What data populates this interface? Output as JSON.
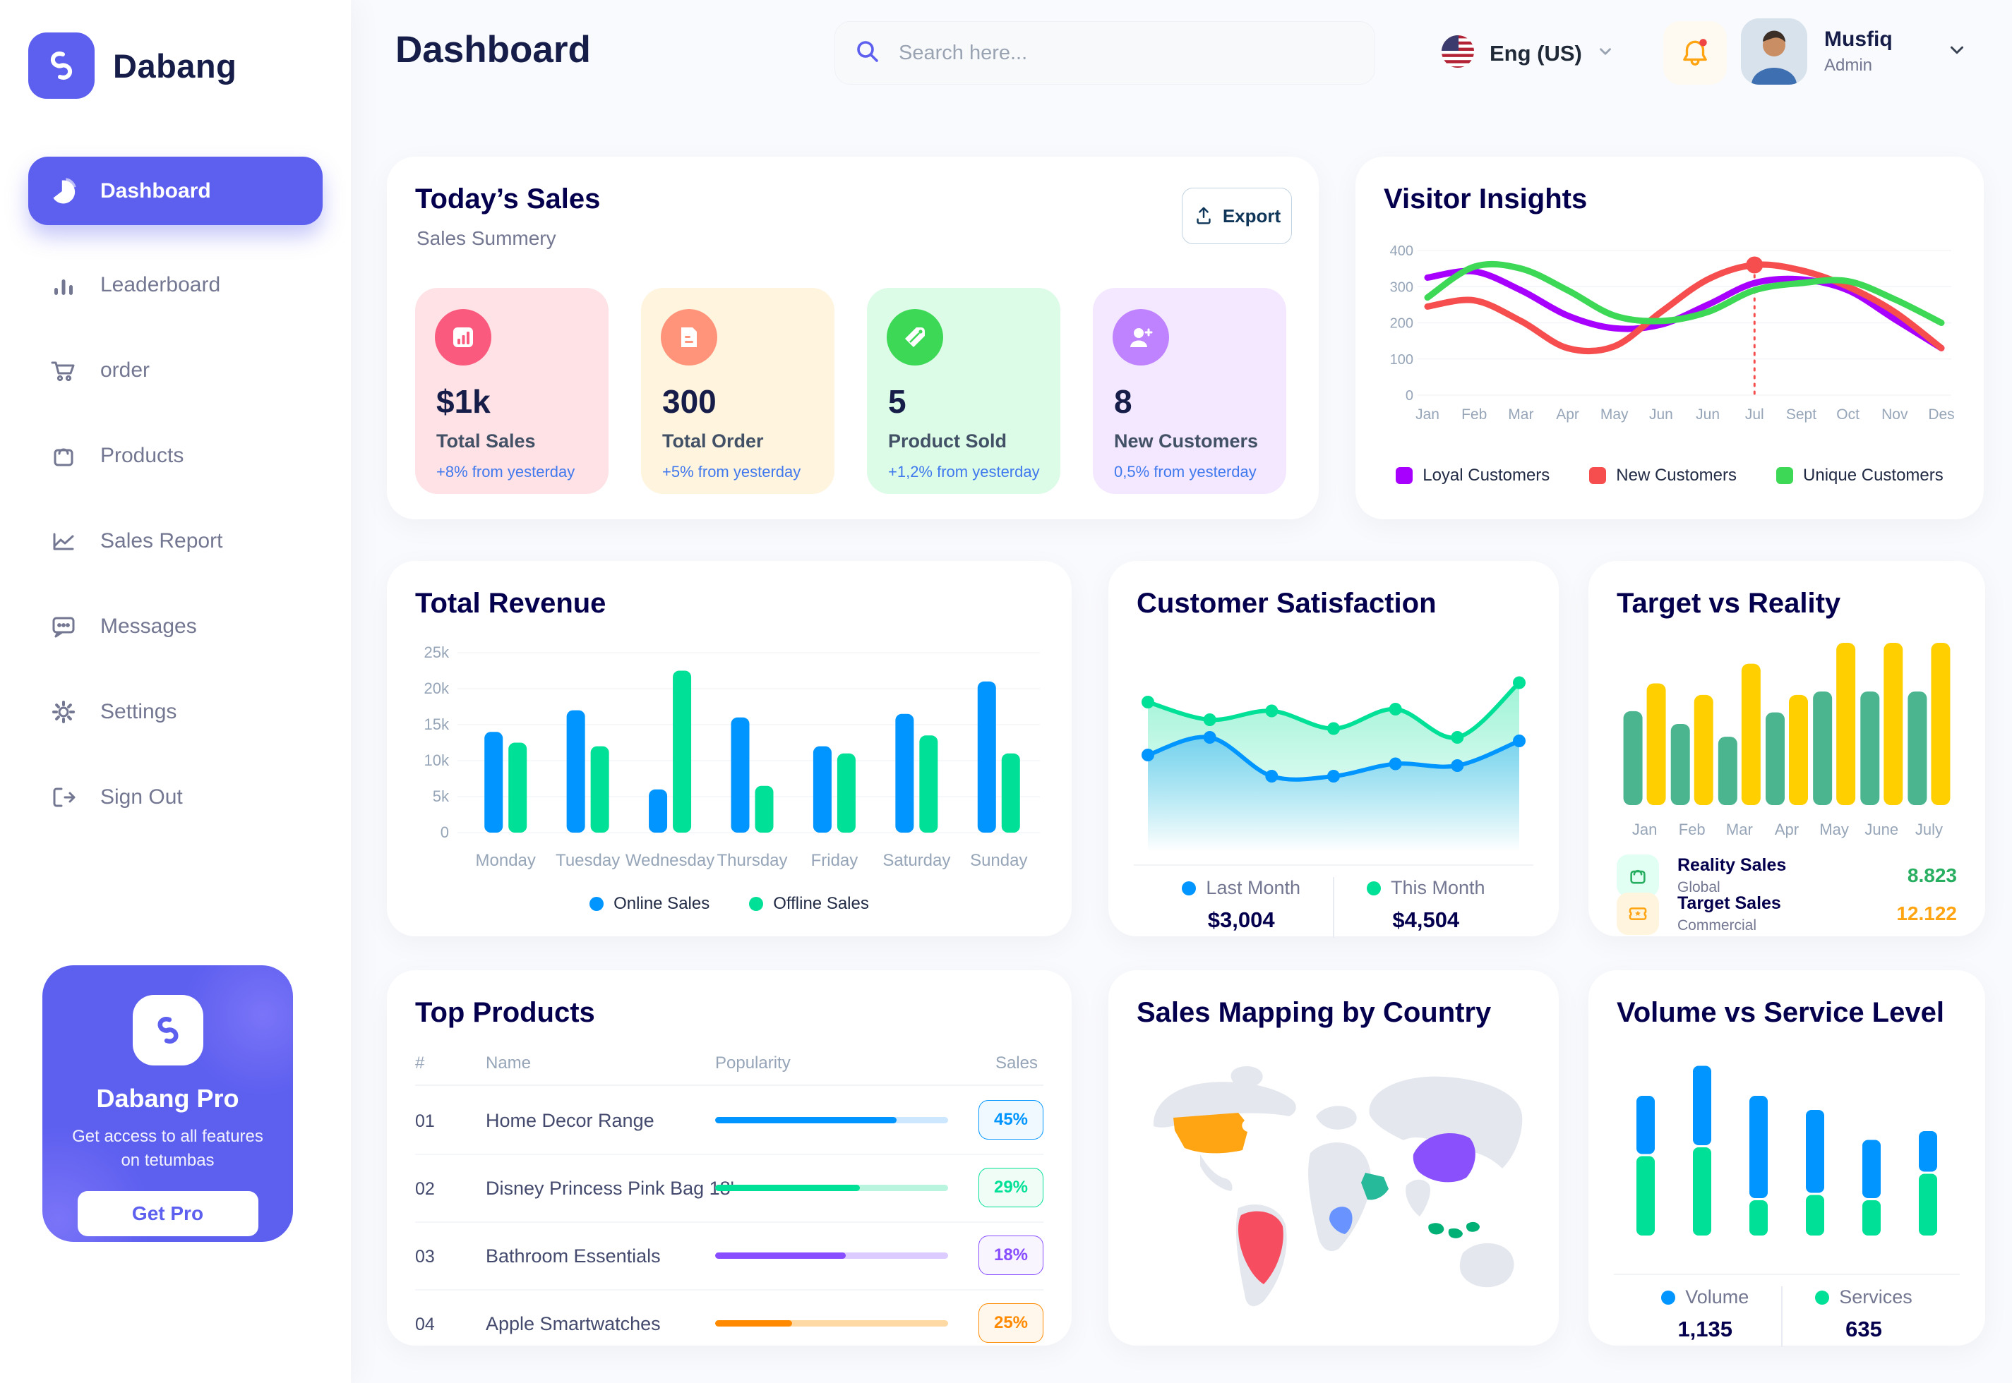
{
  "colors": {
    "accent": "#5D5FEF",
    "heading": "#151D48",
    "section_title": "#05004E",
    "muted": "#737791",
    "axis": "#96A5B8",
    "delta_blue": "#4079ED",
    "online_blue": "#0095FF",
    "offline_green": "#00E096",
    "grid": "#F3F5F9",
    "bell_orange": "#FFA412",
    "alert_red": "#EF4444"
  },
  "app": {
    "brand": "Dabang"
  },
  "header": {
    "title": "Dashboard",
    "search_placeholder": "Search here...",
    "language": "Eng (US)",
    "user": {
      "name": "Musfiq",
      "role": "Admin"
    }
  },
  "sidebar": {
    "items": [
      {
        "label": "Dashboard",
        "icon": "pie-chart-icon",
        "active": true
      },
      {
        "label": "Leaderboard",
        "icon": "bar-chart-icon",
        "active": false
      },
      {
        "label": "order",
        "icon": "cart-icon",
        "active": false
      },
      {
        "label": "Products",
        "icon": "bag-icon",
        "active": false
      },
      {
        "label": "Sales Report",
        "icon": "line-chart-icon",
        "active": false
      },
      {
        "label": "Messages",
        "icon": "message-icon",
        "active": false
      },
      {
        "label": "Settings",
        "icon": "gear-icon",
        "active": false
      },
      {
        "label": "Sign Out",
        "icon": "sign-out-icon",
        "active": false
      }
    ],
    "pro": {
      "title": "Dabang Pro",
      "text": "Get access to all features on tetumbas",
      "button": "Get Pro"
    }
  },
  "today_sales": {
    "title": "Today’s Sales",
    "subtitle": "Sales Summery",
    "export_label": "Export",
    "cards": [
      {
        "value": "$1k",
        "label": "Total Sales",
        "delta": "+8% from yesterday",
        "bg": "#FFE2E5",
        "icon_bg": "#FA5A7D",
        "icon": "sales-chart-icon"
      },
      {
        "value": "300",
        "label": "Total Order",
        "delta": "+5% from yesterday",
        "bg": "#FFF4DE",
        "icon_bg": "#FF947A",
        "icon": "order-receipt-icon"
      },
      {
        "value": "5",
        "label": "Product Sold",
        "delta": "+1,2% from yesterday",
        "bg": "#DCFCE7",
        "icon_bg": "#3CD856",
        "icon": "tag-icon"
      },
      {
        "value": "8",
        "label": "New Customers",
        "delta": "0,5% from yesterday",
        "bg": "#F3E8FF",
        "icon_bg": "#BF83FF",
        "icon": "user-plus-icon"
      }
    ]
  },
  "chart_data": [
    {
      "id": "visitor_insights",
      "type": "line",
      "title": "Visitor Insights",
      "x": [
        "Jan",
        "Feb",
        "Mar",
        "Apr",
        "May",
        "Jun",
        "Jun",
        "Jul",
        "Sept",
        "Oct",
        "Nov",
        "Des"
      ],
      "ylim": [
        0,
        400
      ],
      "yticks": [
        0,
        100,
        200,
        300,
        400
      ],
      "highlight": {
        "x_index": 7,
        "color": "#F64E4E"
      },
      "series": [
        {
          "name": "Loyal Customers",
          "color": "#A700FF",
          "values": [
            325,
            342,
            290,
            220,
            185,
            195,
            250,
            310,
            320,
            290,
            210,
            130
          ]
        },
        {
          "name": "New Customers",
          "color": "#F64E4E",
          "values": [
            245,
            262,
            205,
            130,
            135,
            230,
            320,
            360,
            345,
            300,
            230,
            130
          ]
        },
        {
          "name": "Unique Customers",
          "color": "#3CD856",
          "values": [
            270,
            355,
            350,
            290,
            220,
            205,
            230,
            290,
            310,
            315,
            265,
            200
          ]
        }
      ],
      "legend_position": "bottom",
      "grid": true
    },
    {
      "id": "total_revenue",
      "type": "bar",
      "title": "Total Revenue",
      "categories": [
        "Monday",
        "Tuesday",
        "Wednesday",
        "Thursday",
        "Friday",
        "Saturday",
        "Sunday"
      ],
      "ylim": [
        0,
        25000
      ],
      "ytick_labels": [
        "0",
        "5k",
        "10k",
        "15k",
        "20k",
        "25k"
      ],
      "series": [
        {
          "name": "Online Sales",
          "color": "#0095FF",
          "values": [
            14000,
            17000,
            6000,
            16000,
            12000,
            16500,
            21000
          ]
        },
        {
          "name": "Offline Sales",
          "color": "#00E096",
          "values": [
            12500,
            12000,
            22500,
            6500,
            11000,
            13500,
            11000
          ]
        }
      ],
      "legend_position": "bottom",
      "grid": true
    },
    {
      "id": "customer_satisfaction",
      "type": "area",
      "title": "Customer Satisfaction",
      "ylim": [
        0,
        100
      ],
      "series": [
        {
          "name": "Last Month",
          "color": "#0095FF",
          "total": "$3,004",
          "values": [
            42,
            52,
            30,
            30,
            37,
            36,
            50
          ]
        },
        {
          "name": "This Month",
          "color": "#00E096",
          "total": "$4,504",
          "values": [
            72,
            62,
            67,
            57,
            68,
            52,
            83
          ]
        }
      ],
      "legend_position": "bottom",
      "grid": false
    },
    {
      "id": "target_vs_reality",
      "type": "bar",
      "title": "Target vs Reality",
      "categories": [
        "Jan",
        "Feb",
        "Mar",
        "Apr",
        "May",
        "June",
        "July"
      ],
      "ylim": [
        0,
        14
      ],
      "series": [
        {
          "name": "Reality Sales",
          "color": "#4AB58E",
          "values": [
            8.1,
            7.0,
            5.9,
            8.0,
            9.8,
            9.8,
            9.8
          ]
        },
        {
          "name": "Target Sales",
          "color": "#FFCF00",
          "values": [
            10.5,
            9.5,
            12.2,
            9.5,
            14,
            14,
            14
          ]
        }
      ],
      "legend": [
        {
          "label": "Reality Sales",
          "sub": "Global",
          "value": "8.823",
          "value_color": "#27AE60",
          "tile_bg": "#E2FFF3",
          "icon": "shopping-bag-icon"
        },
        {
          "label": "Target Sales",
          "sub": "Commercial",
          "value": "12.122",
          "value_color": "#FFA412",
          "tile_bg": "#FFF4DE",
          "icon": "ticket-icon"
        }
      ],
      "grid": false
    },
    {
      "id": "volume_service",
      "type": "stacked-bar",
      "title": "Volume vs Service Level",
      "ylim": [
        0,
        1000
      ],
      "series": [
        {
          "name": "Volume",
          "color": "#0095FF",
          "total": "1,135",
          "values": [
            330,
            450,
            580,
            470,
            330,
            230
          ]
        },
        {
          "name": "Services",
          "color": "#00E096",
          "total": "635",
          "values": [
            450,
            500,
            200,
            230,
            200,
            350
          ]
        }
      ],
      "legend_position": "bottom",
      "grid": false
    }
  ],
  "top_products": {
    "title": "Top Products",
    "headers": [
      "#",
      "Name",
      "Popularity",
      "Sales"
    ],
    "rows": [
      {
        "id": "01",
        "name": "Home Decor Range",
        "popularity": 78,
        "sales": "45%",
        "color": "#0095FF",
        "track": "#CDE7FF",
        "badge_bg": "#F0F9FF"
      },
      {
        "id": "02",
        "name": "Disney Princess Pink Bag 18'",
        "popularity": 62,
        "sales": "29%",
        "color": "#00E096",
        "track": "#B9F4DF",
        "badge_bg": "#F0FDF7"
      },
      {
        "id": "03",
        "name": "Bathroom Essentials",
        "popularity": 56,
        "sales": "18%",
        "color": "#884DFF",
        "track": "#DCCBFF",
        "badge_bg": "#F9F5FF"
      },
      {
        "id": "04",
        "name": "Apple Smartwatches",
        "popularity": 33,
        "sales": "25%",
        "color": "#FF8900",
        "track": "#FFD9A3",
        "badge_bg": "#FFF7EC"
      }
    ]
  },
  "sales_mapping": {
    "title": "Sales Mapping by Country",
    "land_color": "#E4E8EE",
    "countries": [
      {
        "name": "United States",
        "color": "#FFA412"
      },
      {
        "name": "Brazil",
        "color": "#F64E60"
      },
      {
        "name": "Democratic Republic of Congo",
        "color": "#6993FF"
      },
      {
        "name": "Saudi Arabia",
        "color": "#26B99A"
      },
      {
        "name": "China",
        "color": "#8950FC"
      },
      {
        "name": "Indonesia",
        "color": "#00B074"
      }
    ]
  }
}
